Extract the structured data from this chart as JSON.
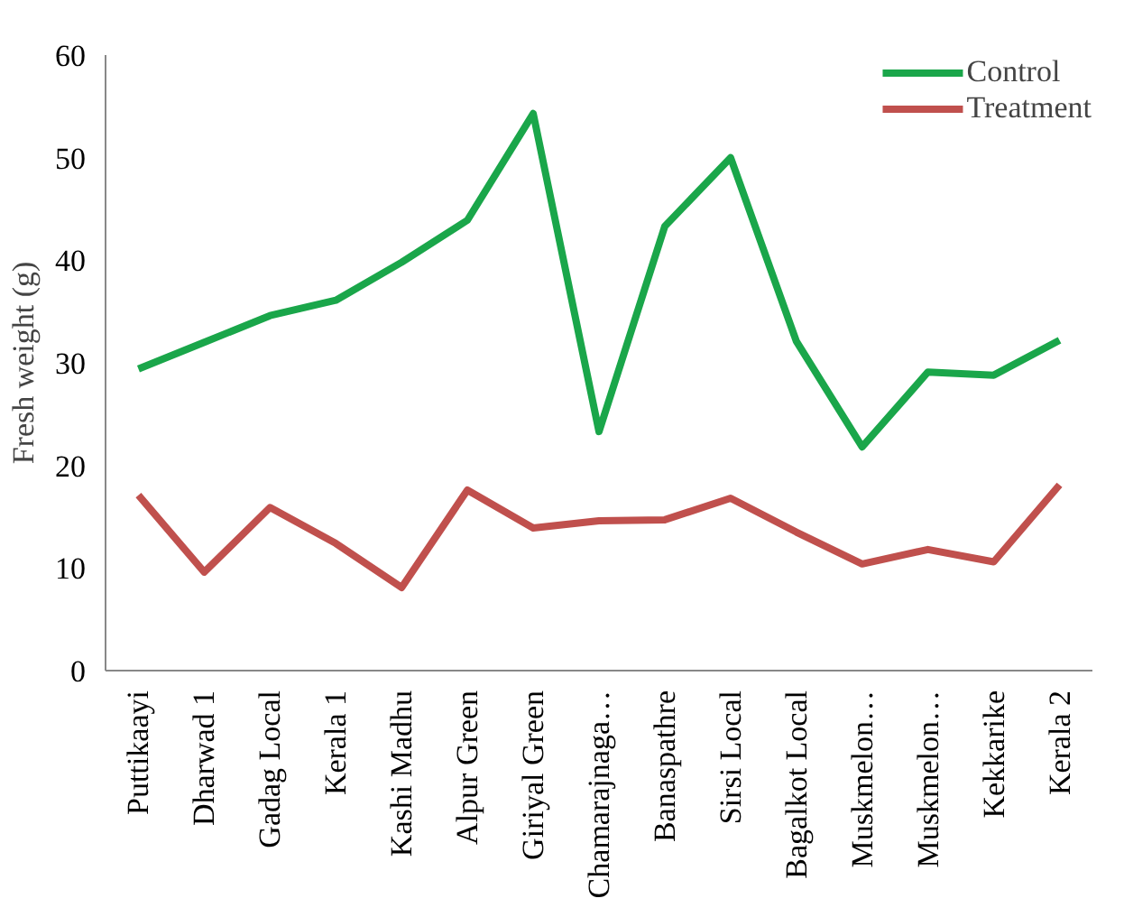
{
  "chart_data": {
    "type": "line",
    "ylabel": "Fresh weight (g)",
    "categories": [
      "Puttikaayi",
      "Dharwad 1",
      "Gadag Local",
      "Kerala 1",
      "Kashi Madhu",
      "Alpur Green",
      "Giriyal Green",
      "Chamarajnaga…",
      "Banaspathre",
      "Sirsi Local",
      "Bagalkot Local",
      "Muskmelon…",
      "Muskmelon…",
      "Kekkarike",
      "Kerala 2"
    ],
    "series": [
      {
        "name": "Control",
        "color": "#1aa64a",
        "values": [
          29.4,
          32,
          34.6,
          36.1,
          39.8,
          43.9,
          54.3,
          23.3,
          43.3,
          50,
          32.1,
          21.8,
          29.1,
          28.8,
          32.2
        ]
      },
      {
        "name": "Treatment",
        "color": "#c0504d",
        "values": [
          17.1,
          9.6,
          15.9,
          12.4,
          8.1,
          17.6,
          13.9,
          14.6,
          14.7,
          16.8,
          13.5,
          10.4,
          11.8,
          10.6,
          18.1
        ]
      }
    ],
    "ylim": [
      0,
      60
    ],
    "yticks": [
      0,
      10,
      20,
      30,
      40,
      50,
      60
    ],
    "grid": false,
    "legend": "top right"
  }
}
